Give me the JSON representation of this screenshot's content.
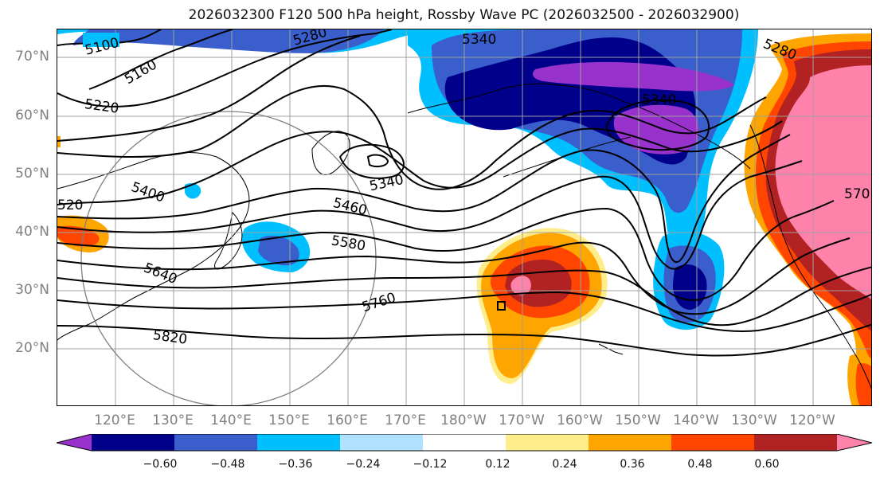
{
  "title": "2026032300 F120 500 hPa height, Rossby Wave PC (2026032500 - 2026032900)",
  "lat_labels": [
    "70°N",
    "60°N",
    "50°N",
    "40°N",
    "30°N",
    "20°N"
  ],
  "lon_labels": [
    "120°E",
    "130°E",
    "140°E",
    "150°E",
    "160°E",
    "170°E",
    "180°W",
    "170°W",
    "160°W",
    "150°W",
    "140°W",
    "130°W",
    "120°W"
  ],
  "contour_labels": [
    "5100",
    "5160",
    "5280",
    "5340",
    "5220",
    "5340",
    "5340",
    "5400",
    "520",
    "5460",
    "5580",
    "5640",
    "5760",
    "5820",
    "570",
    "5280"
  ],
  "colorbar": {
    "tick_labels": [
      "−0.60",
      "−0.48",
      "−0.36",
      "−0.24",
      "−0.12",
      "0.12",
      "0.24",
      "0.36",
      "0.48",
      "0.60"
    ],
    "colors": [
      "#9932cc",
      "#00008b",
      "#3a5fcd",
      "#00bfff",
      "#b0e2ff",
      "#ffffff",
      "#ffec8b",
      "#ffa500",
      "#ff4500",
      "#b22222",
      "#ff82ab"
    ]
  },
  "colors": {
    "purple": "#9932cc",
    "navy": "#00008b",
    "royal_blue": "#3a5fcd",
    "sky_blue": "#00bfff",
    "light_blue": "#b0e2ff",
    "pale_yellow": "#ffec8b",
    "orange": "#ffa500",
    "red_orange": "#ff4500",
    "dark_red": "#b22222",
    "pink": "#ff82ab",
    "grid": "#a0a0a0",
    "axis_label": "#808080"
  }
}
